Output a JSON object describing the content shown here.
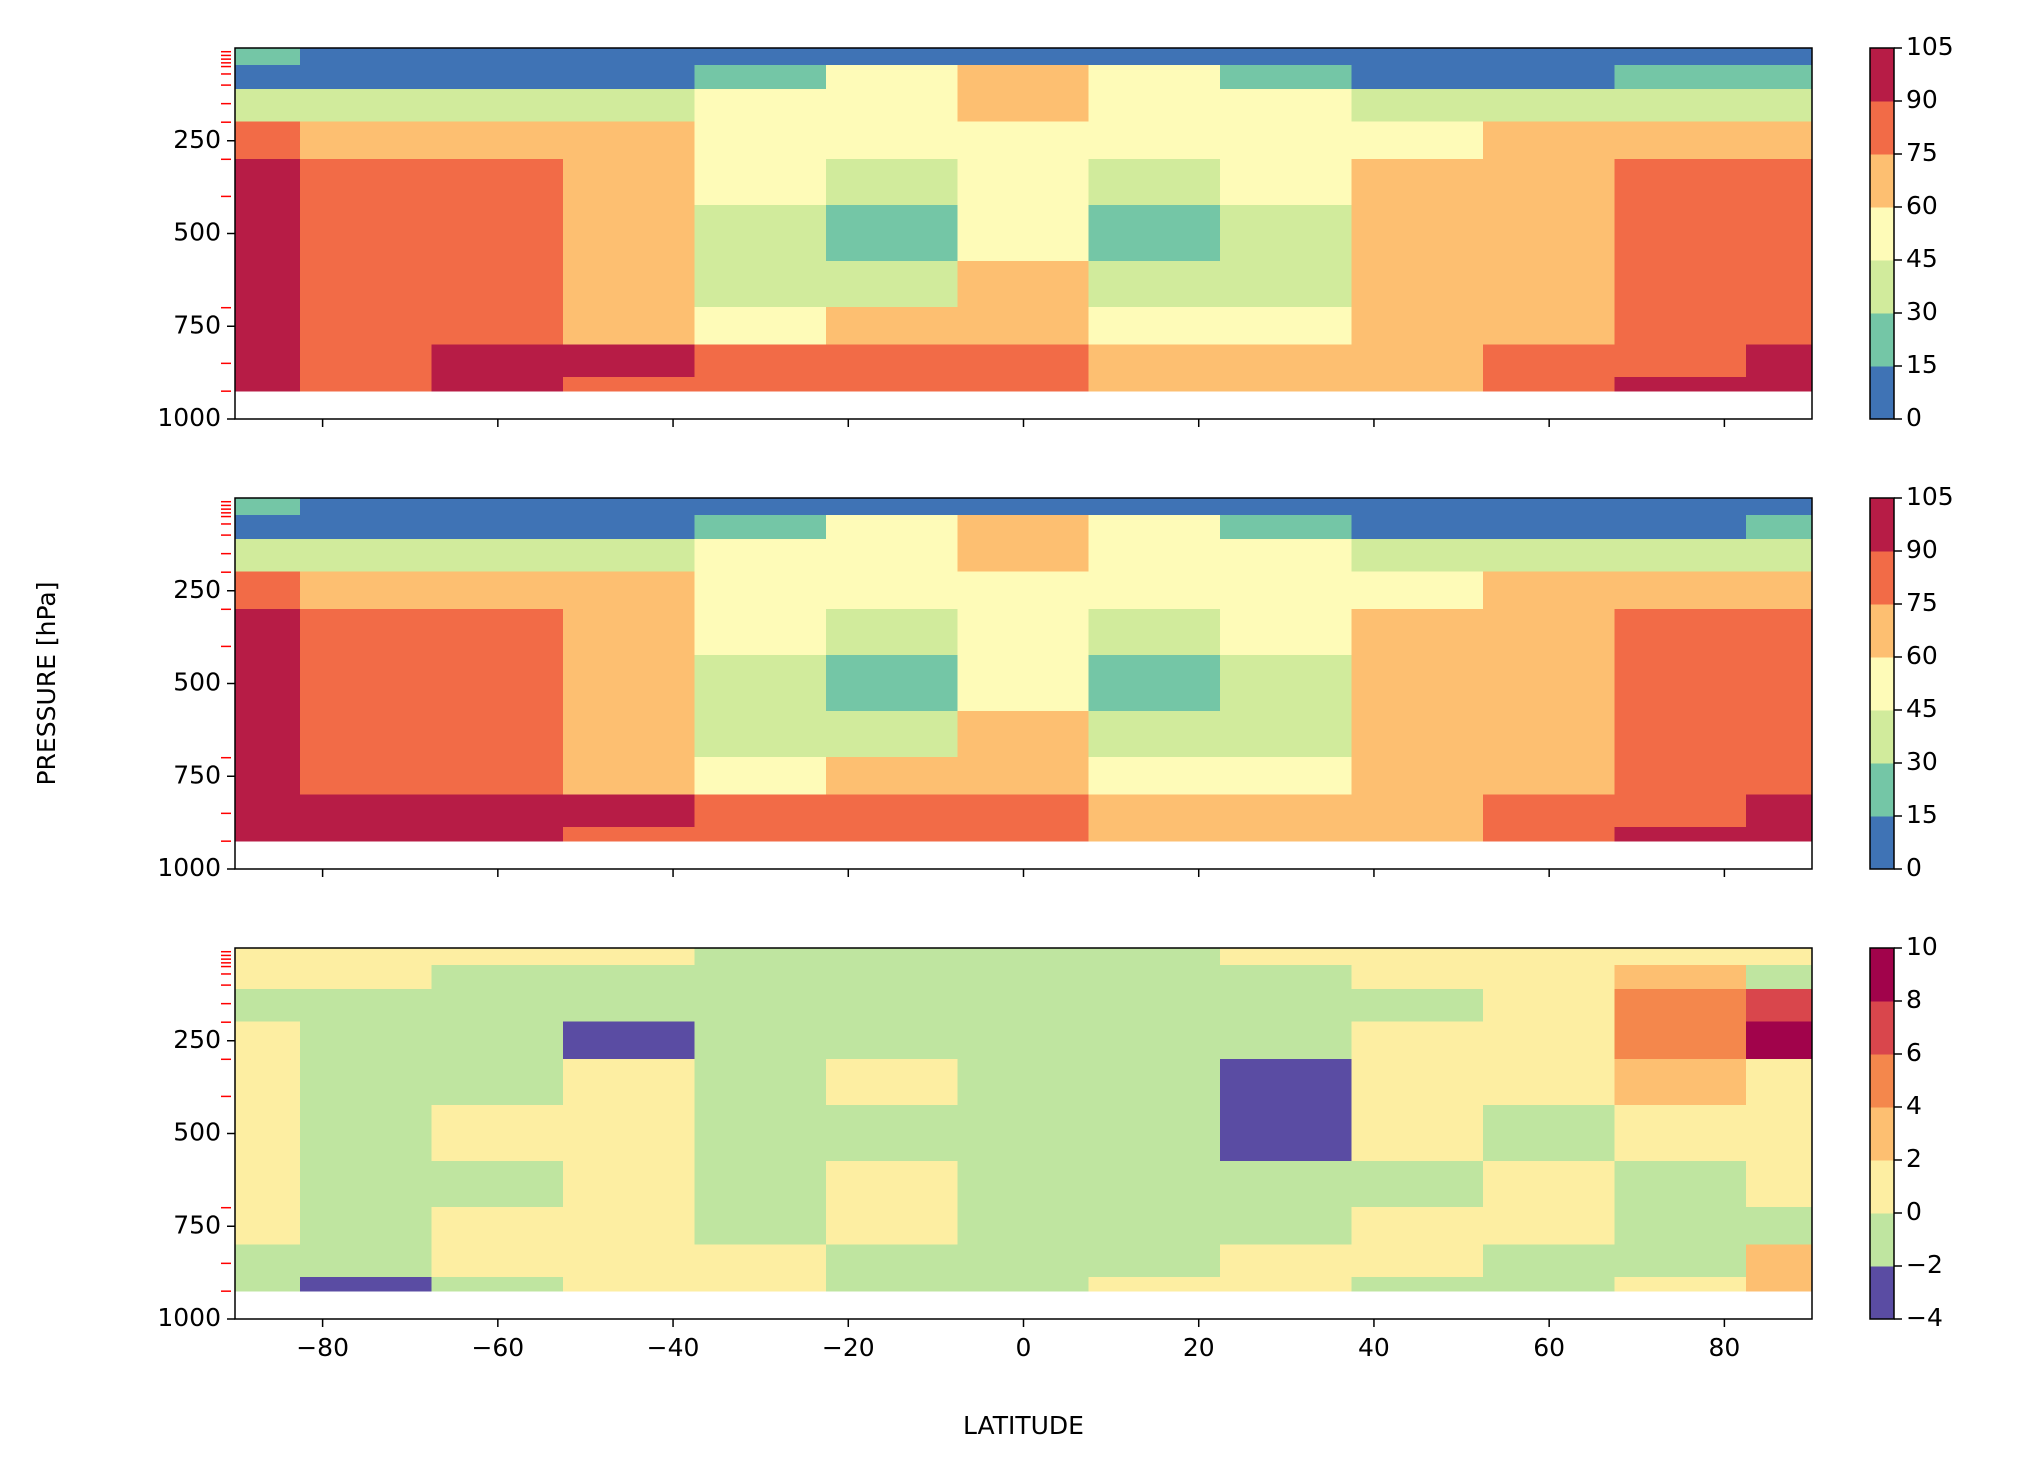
{
  "chart_data": [
    {
      "type": "contour",
      "x": [
        -90,
        -75,
        -60,
        -45,
        -30,
        -15,
        0,
        15,
        30,
        45,
        60,
        75,
        90
      ],
      "y": [
        20,
        75,
        150,
        250,
        350,
        500,
        650,
        750,
        850,
        925
      ],
      "z": [
        [
          20,
          8,
          5,
          5,
          5,
          5,
          5,
          5,
          5,
          5,
          5,
          5,
          5
        ],
        [
          10,
          8,
          8,
          10,
          25,
          55,
          65,
          55,
          25,
          8,
          8,
          20,
          25
        ],
        [
          40,
          40,
          38,
          40,
          50,
          55,
          62,
          55,
          50,
          40,
          35,
          35,
          40
        ],
        [
          80,
          70,
          68,
          65,
          50,
          50,
          52,
          50,
          50,
          55,
          65,
          68,
          70
        ],
        [
          92,
          80,
          78,
          65,
          50,
          40,
          48,
          40,
          50,
          65,
          68,
          80,
          80
        ],
        [
          95,
          80,
          78,
          60,
          40,
          25,
          50,
          25,
          40,
          60,
          65,
          80,
          80
        ],
        [
          95,
          80,
          78,
          62,
          40,
          38,
          62,
          38,
          40,
          60,
          62,
          80,
          80
        ],
        [
          95,
          80,
          78,
          70,
          55,
          60,
          70,
          55,
          55,
          62,
          68,
          80,
          80
        ],
        [
          92,
          80,
          92,
          92,
          75,
          78,
          80,
          70,
          62,
          62,
          78,
          85,
          92
        ],
        [
          92,
          85,
          95,
          85,
          80,
          80,
          80,
          62,
          60,
          60,
          80,
          92,
          95
        ]
      ],
      "levels": [
        0,
        15,
        30,
        45,
        60,
        75,
        90,
        105
      ],
      "colors": [
        "#3f73b5",
        "#74c6a6",
        "#d1eb9c",
        "#fefbb8",
        "#fdbf71",
        "#f26b47",
        "#b71c46"
      ],
      "xlim": [
        -90,
        90
      ],
      "ylim": [
        1000,
        0
      ],
      "xticks": [
        -80,
        -60,
        -40,
        -20,
        0,
        20,
        40,
        60,
        80
      ],
      "yticks": [
        250,
        500,
        750,
        1000
      ],
      "red_ticks": [
        10,
        20,
        30,
        40,
        50,
        70,
        100,
        150,
        200,
        300,
        400,
        700,
        850,
        925
      ],
      "red_tick_color": "red"
    },
    {
      "type": "contour",
      "ylabel": "PRESSURE [hPa]",
      "x": [
        -90,
        -75,
        -60,
        -45,
        -30,
        -15,
        0,
        15,
        30,
        45,
        60,
        75,
        90
      ],
      "y": [
        20,
        75,
        150,
        250,
        350,
        500,
        650,
        750,
        850,
        925
      ],
      "z": [
        [
          20,
          8,
          5,
          5,
          5,
          5,
          5,
          5,
          5,
          5,
          5,
          5,
          5
        ],
        [
          10,
          8,
          8,
          10,
          25,
          50,
          65,
          52,
          25,
          8,
          8,
          10,
          20
        ],
        [
          38,
          40,
          38,
          40,
          50,
          55,
          62,
          55,
          50,
          40,
          35,
          32,
          35
        ],
        [
          80,
          70,
          68,
          65,
          50,
          50,
          52,
          50,
          50,
          58,
          65,
          68,
          70
        ],
        [
          92,
          80,
          78,
          65,
          50,
          40,
          48,
          40,
          50,
          65,
          68,
          80,
          80
        ],
        [
          95,
          80,
          78,
          60,
          40,
          25,
          50,
          25,
          40,
          60,
          65,
          80,
          80
        ],
        [
          95,
          80,
          78,
          62,
          40,
          38,
          62,
          38,
          40,
          60,
          62,
          80,
          80
        ],
        [
          95,
          80,
          78,
          70,
          55,
          60,
          70,
          55,
          55,
          62,
          68,
          80,
          80
        ],
        [
          92,
          92,
          92,
          92,
          75,
          78,
          80,
          70,
          62,
          62,
          78,
          85,
          92
        ],
        [
          95,
          92,
          95,
          85,
          80,
          80,
          80,
          62,
          60,
          60,
          80,
          92,
          95
        ]
      ],
      "levels": [
        0,
        15,
        30,
        45,
        60,
        75,
        90,
        105
      ],
      "colors": [
        "#3f73b5",
        "#74c6a6",
        "#d1eb9c",
        "#fefbb8",
        "#fdbf71",
        "#f26b47",
        "#b71c46"
      ],
      "xlim": [
        -90,
        90
      ],
      "ylim": [
        1000,
        0
      ],
      "xticks": [
        -80,
        -60,
        -40,
        -20,
        0,
        20,
        40,
        60,
        80
      ],
      "yticks": [
        250,
        500,
        750,
        1000
      ],
      "red_ticks": [
        10,
        20,
        30,
        40,
        50,
        70,
        100,
        150,
        200,
        300,
        400,
        700,
        850,
        925
      ],
      "red_tick_color": "red"
    },
    {
      "type": "contour",
      "xlabel": "LATITUDE",
      "x": [
        -90,
        -75,
        -60,
        -45,
        -30,
        -15,
        0,
        15,
        30,
        45,
        60,
        75,
        90
      ],
      "y": [
        20,
        75,
        150,
        250,
        350,
        500,
        650,
        750,
        850,
        925
      ],
      "z": [
        [
          1,
          1,
          1,
          1,
          -1,
          -1,
          -1,
          -1,
          1,
          1,
          1,
          1,
          1
        ],
        [
          1,
          1,
          -1,
          -1,
          -1,
          -1,
          -1,
          -1,
          -1,
          1,
          1,
          3,
          -1
        ],
        [
          -1,
          -1,
          -1,
          -1,
          -1,
          -1,
          -1,
          -1,
          -1,
          -1,
          1,
          5,
          7
        ],
        [
          1,
          -1,
          -1,
          -3,
          -1,
          -1,
          -1,
          -1,
          -1,
          1,
          1,
          5,
          9
        ],
        [
          1,
          -1,
          -1,
          1,
          -1,
          1,
          -1,
          -1,
          -3,
          1,
          1,
          3,
          1
        ],
        [
          1,
          -1,
          1,
          1,
          -1,
          -1,
          -1,
          -1,
          -3,
          1,
          -1,
          1,
          1
        ],
        [
          1,
          -1,
          -1,
          1,
          -1,
          1,
          -1,
          -1,
          -1,
          -1,
          1,
          -1,
          1
        ],
        [
          1,
          -1,
          1,
          1,
          -1,
          1,
          -1,
          -1,
          -1,
          1,
          1,
          -1,
          -1
        ],
        [
          -1,
          -1,
          1,
          1,
          1,
          -1,
          -1,
          -1,
          1,
          1,
          -1,
          -1,
          3
        ],
        [
          -1,
          -3,
          -1,
          1,
          1,
          -1,
          -1,
          1,
          1,
          -1,
          -1,
          1,
          3
        ]
      ],
      "levels": [
        {
          "value": -4,
          "label": "−4"
        },
        {
          "value": -2,
          "label": "−2"
        },
        0,
        2,
        4,
        6,
        8,
        10
      ],
      "colors": [
        "#5a4ca3",
        "#bfe5a0",
        "#fdeea2",
        "#fdbf71",
        "#f4874c",
        "#d9464c",
        "#a1034b"
      ],
      "xlim": [
        -90,
        90
      ],
      "ylim": [
        1000,
        0
      ],
      "xticks": [
        {
          "value": -80,
          "label": "−80"
        },
        {
          "value": -60,
          "label": "−60"
        },
        {
          "value": -40,
          "label": "−40"
        },
        {
          "value": -20,
          "label": "−20"
        },
        0,
        20,
        40,
        60,
        80
      ],
      "yticks": [
        250,
        500,
        750,
        1000
      ],
      "red_ticks": [
        10,
        20,
        30,
        40,
        50,
        70,
        100,
        150,
        200,
        300,
        400,
        700,
        850,
        925
      ],
      "red_tick_color": "red"
    }
  ]
}
